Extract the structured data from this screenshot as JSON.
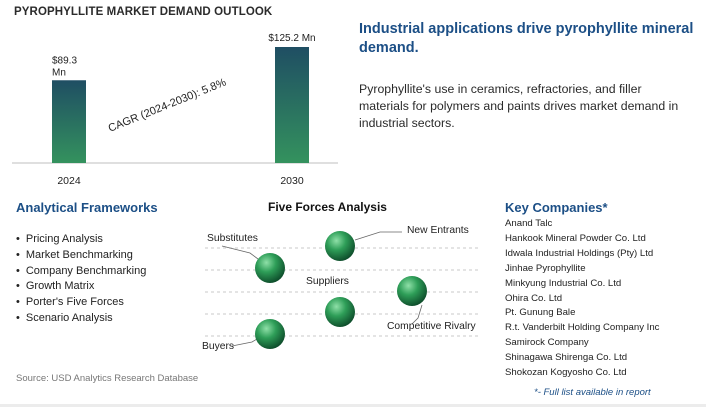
{
  "header": {
    "title": "PYROPHYLLITE MARKET DEMAND OUTLOOK"
  },
  "chart_data": {
    "type": "bar",
    "categories": [
      "2024",
      "2030"
    ],
    "values": [
      89.3,
      125.2
    ],
    "value_labels": [
      "$89.3 Mn",
      "$125.2 Mn"
    ],
    "unit": "$ Mn",
    "cagr_label": "CAGR (2024-2030):",
    "cagr_value": "5.8%",
    "grid": false,
    "legend": "none",
    "colors": {
      "bar_top": "#1f4e63",
      "bar_bottom": "#34925e",
      "axis": "#bfbfbf"
    }
  },
  "insight": {
    "headline": "Industrial applications drive pyrophyllite mineral demand.",
    "description": "Pyrophyllite's use in ceramics, refractories, and filler materials for polymers and paints drives market demand in industrial sectors."
  },
  "frameworks": {
    "title": "Analytical Frameworks",
    "items": [
      "Pricing Analysis",
      "Market Benchmarking",
      "Company Benchmarking",
      "Growth Matrix",
      "Porter's Five Forces",
      "Scenario Analysis"
    ]
  },
  "five_forces": {
    "title": "Five Forces Analysis",
    "labels": {
      "substitutes": "Substitutes",
      "new_entrants": "New Entrants",
      "suppliers": "Suppliers",
      "competitive_rivalry": "Competitive Rivalry",
      "buyers": "Buyers"
    },
    "sphere_color": "#2e9e58"
  },
  "companies": {
    "title": "Key Companies*",
    "items": [
      "Anand Talc",
      "Hankook Mineral Powder Co. Ltd",
      "Idwala Industrial Holdings (Pty) Ltd",
      "Jinhae Pyrophyllite",
      "Minkyung Industrial Co. Ltd",
      "Ohira Co. Ltd",
      "Pt. Gunung Bale",
      "R.t. Vanderbilt Holding Company Inc",
      "Samirock Company",
      "Shinagawa Shirenga Co. Ltd",
      "Shokozan Kogyosho Co. Ltd"
    ],
    "footnote": "*- Full list available in report"
  },
  "source": "Source: USD Analytics Research Database"
}
